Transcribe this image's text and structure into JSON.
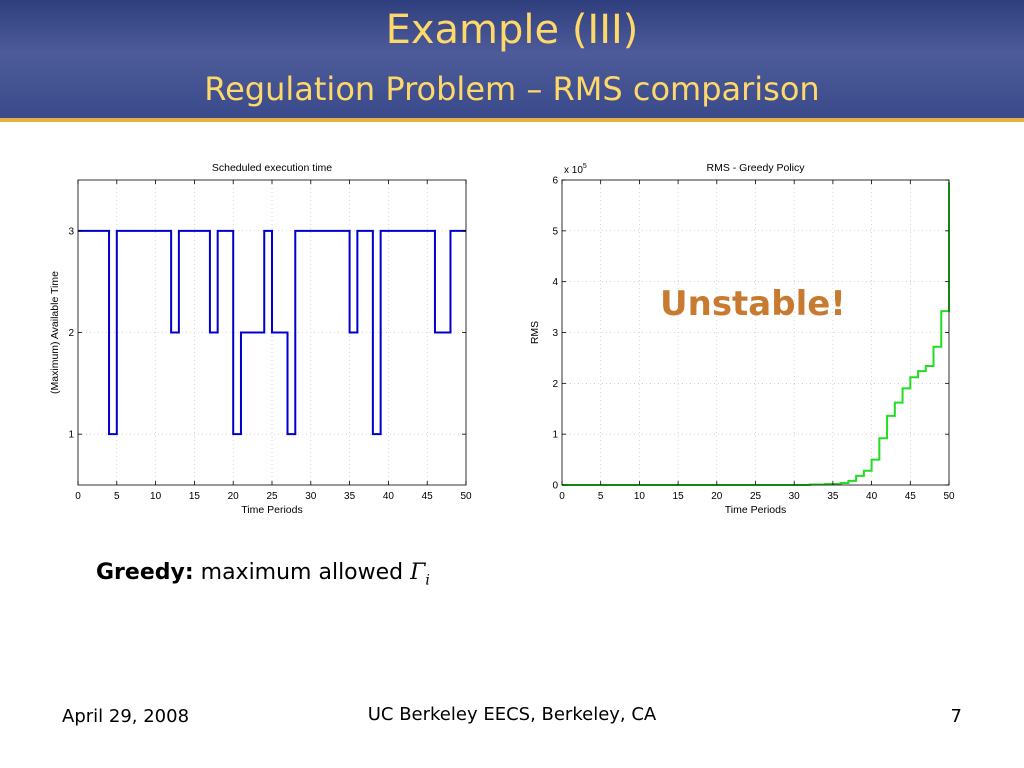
{
  "slide": {
    "title": "Example (III)",
    "subtitle": "Regulation Problem – RMS comparison"
  },
  "annotation": "Unstable!",
  "caption": {
    "bold": "Greedy:",
    "text": " maximum allowed ",
    "symbol": "Γ",
    "subscript": "i"
  },
  "footer": {
    "date": "April 29, 2008",
    "org": "UC Berkeley EECS, Berkeley, CA",
    "page": "7"
  },
  "colors": {
    "header": "#3a4a8a",
    "title": "#ffd86a",
    "rule": "#e8b040",
    "annotation": "#c87a30"
  },
  "chart_data": [
    {
      "type": "line",
      "title": "Scheduled execution time",
      "xlabel": "Time Periods",
      "ylabel": "(Maximum) Available Time",
      "xlim": [
        0,
        50
      ],
      "ylim": [
        0.5,
        3.5
      ],
      "xticks": [
        0,
        5,
        10,
        15,
        20,
        25,
        30,
        35,
        40,
        45,
        50
      ],
      "yticks": [
        1,
        2,
        3
      ],
      "grid": true,
      "step": true,
      "series": [
        {
          "color": "#0000cc",
          "x": [
            0,
            4,
            5,
            12,
            13,
            17,
            18,
            20,
            21,
            24,
            25,
            27,
            28,
            35,
            36,
            38,
            39,
            46,
            48,
            50
          ],
          "y": [
            3,
            1,
            3,
            2,
            3,
            2,
            3,
            1,
            2,
            3,
            2,
            1,
            3,
            2,
            3,
            1,
            3,
            2,
            3,
            3
          ]
        }
      ]
    },
    {
      "type": "line",
      "title": "RMS - Greedy Policy",
      "xlabel": "Time Periods",
      "ylabel": "RMS",
      "scale_label": "x 10",
      "scale_exponent": "5",
      "xlim": [
        0,
        50
      ],
      "ylim": [
        0,
        6
      ],
      "xticks": [
        0,
        5,
        10,
        15,
        20,
        25,
        30,
        35,
        40,
        45,
        50
      ],
      "yticks": [
        0,
        1,
        2,
        3,
        4,
        5,
        6
      ],
      "grid": true,
      "step": true,
      "series": [
        {
          "color": "#22dd22",
          "x": [
            0,
            32,
            34,
            36,
            37,
            38,
            39,
            40,
            41,
            42,
            43,
            44,
            45,
            46,
            47,
            48,
            49,
            50
          ],
          "y": [
            0,
            0.01,
            0.02,
            0.04,
            0.08,
            0.18,
            0.28,
            0.5,
            0.92,
            1.36,
            1.62,
            1.9,
            2.12,
            2.24,
            2.34,
            2.72,
            3.42,
            5.95
          ]
        }
      ]
    }
  ]
}
